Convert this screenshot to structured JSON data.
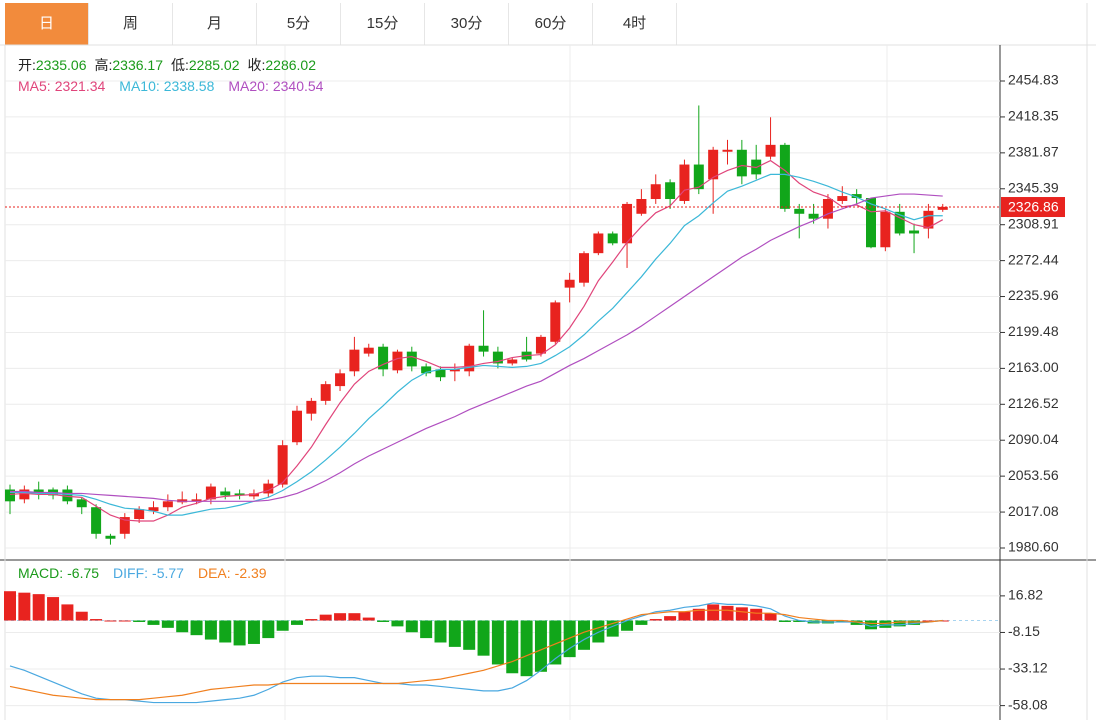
{
  "tabs": [
    "日",
    "周",
    "月",
    "5分",
    "15分",
    "30分",
    "60分",
    "4时"
  ],
  "active_tab": 0,
  "chart_data": [
    {
      "type": "candlestick",
      "readout": [
        {
          "name": "开:",
          "value": 2335.06
        },
        {
          "name": "高:",
          "value": 2336.17
        },
        {
          "name": "低:",
          "value": 2285.02
        },
        {
          "name": "收:",
          "value": 2286.02
        }
      ],
      "readout_color": "#1a9a1a",
      "up_color": "#e8231f",
      "down_color": "#11a61a",
      "open": [
        2040,
        2030,
        2040,
        2040,
        2040,
        2030,
        2022,
        1993,
        1995,
        2010,
        2018,
        2022,
        2027,
        2028,
        2030,
        2038,
        2036,
        2033,
        2036,
        2045,
        2088,
        2117,
        2130,
        2145,
        2160,
        2178,
        2185,
        2161,
        2180,
        2165,
        2162,
        2160,
        2160,
        2186,
        2180,
        2168,
        2180,
        2178,
        2190,
        2245,
        2250,
        2280,
        2300,
        2290,
        2320,
        2335,
        2352,
        2333,
        2370,
        2355,
        2383,
        2385,
        2375,
        2378,
        2390,
        2325,
        2320,
        2315,
        2333,
        2340,
        2336,
        2286,
        2322,
        2303,
        2305,
        2324
      ],
      "high": [
        2045,
        2044,
        2048,
        2042,
        2044,
        2032,
        2025,
        1995,
        2016,
        2023,
        2028,
        2035,
        2038,
        2036,
        2046,
        2042,
        2040,
        2040,
        2050,
        2090,
        2125,
        2133,
        2150,
        2162,
        2195,
        2188,
        2188,
        2182,
        2185,
        2168,
        2165,
        2168,
        2188,
        2222,
        2185,
        2174,
        2195,
        2197,
        2232,
        2260,
        2282,
        2302,
        2302,
        2332,
        2345,
        2360,
        2355,
        2375,
        2430,
        2388,
        2395,
        2395,
        2390,
        2418,
        2392,
        2330,
        2330,
        2340,
        2348,
        2345,
        2336,
        2325,
        2330,
        2310,
        2330,
        2330
      ],
      "low": [
        2015,
        2026,
        2030,
        2030,
        2025,
        2015,
        1990,
        1984,
        1990,
        2006,
        2015,
        2018,
        2025,
        2025,
        2025,
        2030,
        2030,
        2030,
        2032,
        2042,
        2085,
        2110,
        2126,
        2140,
        2155,
        2175,
        2155,
        2158,
        2160,
        2155,
        2150,
        2150,
        2155,
        2175,
        2163,
        2166,
        2170,
        2175,
        2188,
        2230,
        2246,
        2278,
        2288,
        2265,
        2318,
        2330,
        2325,
        2330,
        2340,
        2320,
        2370,
        2350,
        2355,
        2375,
        2322,
        2295,
        2310,
        2305,
        2330,
        2330,
        2285,
        2282,
        2298,
        2280,
        2295,
        2322
      ],
      "close": [
        2028,
        2040,
        2036,
        2034,
        2028,
        2022,
        1995,
        1990,
        2012,
        2020,
        2022,
        2028,
        2030,
        2030,
        2043,
        2034,
        2034,
        2036,
        2046,
        2085,
        2120,
        2130,
        2147,
        2158,
        2182,
        2184,
        2162,
        2180,
        2165,
        2158,
        2154,
        2162,
        2186,
        2180,
        2168,
        2172,
        2172,
        2195,
        2230,
        2253,
        2280,
        2300,
        2290,
        2330,
        2335,
        2350,
        2335,
        2370,
        2345,
        2385,
        2385,
        2358,
        2360,
        2390,
        2325,
        2320,
        2315,
        2335,
        2338,
        2336,
        2286,
        2322,
        2300,
        2300,
        2323,
        2327
      ],
      "series": [
        {
          "name": "MA5:",
          "readout": 2321.34,
          "color": "#e0457b",
          "values": [
            2035,
            2036,
            2035,
            2035,
            2033,
            2032,
            2023,
            2014,
            2009,
            2008,
            2008,
            2014,
            2022,
            2026,
            2031,
            2033,
            2034,
            2035,
            2039,
            2047,
            2064,
            2083,
            2106,
            2128,
            2147,
            2160,
            2167,
            2173,
            2175,
            2170,
            2164,
            2164,
            2165,
            2168,
            2170,
            2174,
            2176,
            2177,
            2187,
            2204,
            2226,
            2252,
            2271,
            2291,
            2307,
            2321,
            2328,
            2344,
            2347,
            2357,
            2364,
            2369,
            2367,
            2374,
            2364,
            2351,
            2342,
            2337,
            2327,
            2329,
            2322,
            2323,
            2316,
            2309,
            2306,
            2314
          ]
        },
        {
          "name": "MA10:",
          "readout": 2338.58,
          "color": "#3cb8d8",
          "values": [
            2037,
            2037,
            2036,
            2036,
            2035,
            2034,
            2030,
            2025,
            2021,
            2020,
            2018,
            2014,
            2014,
            2017,
            2020,
            2021,
            2024,
            2028,
            2032,
            2039,
            2048,
            2058,
            2070,
            2083,
            2097,
            2112,
            2125,
            2139,
            2151,
            2159,
            2162,
            2162,
            2164,
            2166,
            2165,
            2164,
            2165,
            2168,
            2176,
            2185,
            2197,
            2211,
            2224,
            2240,
            2256,
            2274,
            2290,
            2308,
            2318,
            2331,
            2343,
            2348,
            2354,
            2360,
            2360,
            2357,
            2353,
            2348,
            2342,
            2337,
            2330,
            2325,
            2319,
            2314,
            2318,
            2318
          ]
        },
        {
          "name": "MA20:",
          "readout": 2340.54,
          "color": "#b04fc0",
          "values": [
            2038,
            2038,
            2037,
            2037,
            2036,
            2036,
            2035,
            2034,
            2033,
            2032,
            2031,
            2029,
            2028,
            2028,
            2028,
            2028,
            2028,
            2028,
            2029,
            2032,
            2036,
            2042,
            2049,
            2057,
            2066,
            2074,
            2081,
            2088,
            2095,
            2102,
            2108,
            2114,
            2121,
            2127,
            2133,
            2139,
            2145,
            2150,
            2158,
            2166,
            2173,
            2181,
            2189,
            2197,
            2206,
            2216,
            2226,
            2236,
            2246,
            2256,
            2266,
            2276,
            2284,
            2293,
            2300,
            2307,
            2313,
            2320,
            2325,
            2330,
            2336,
            2338,
            2340,
            2340,
            2339,
            2338
          ]
        }
      ],
      "last_price": 2326.86,
      "ylim": [
        1968.4,
        2491.4
      ],
      "yticks": [
        2454.83,
        2418.35,
        2381.87,
        2345.39,
        2308.91,
        2272.44,
        2235.96,
        2199.48,
        {
          "value": 2163,
          "label": "2163.00"
        },
        2126.52,
        2090.04,
        2053.56,
        2017.08,
        {
          "value": 1980.6,
          "label": "1980.60"
        }
      ],
      "grid": true
    },
    {
      "type": "macd",
      "histogram": {
        "name": "MACD:",
        "readout": -6.75,
        "color": "#1a9a1a",
        "values": [
          20,
          19,
          18,
          16,
          11,
          6,
          1,
          0,
          0,
          -1,
          -3,
          -5,
          -8,
          -10,
          -13,
          -15,
          -17,
          -16,
          -12,
          -7,
          -3,
          1,
          4,
          5,
          5,
          2,
          -1,
          -4,
          -8,
          -12,
          -15,
          -18,
          -20,
          -24,
          -30,
          -36,
          -38,
          -35,
          -30,
          -25,
          -20,
          -15,
          -11,
          -7,
          -3,
          1,
          3,
          6,
          8,
          11,
          10,
          9,
          8,
          5,
          -1,
          -1,
          -2,
          -2,
          -1,
          -3,
          -6,
          -5,
          -4,
          -3,
          0,
          0
        ]
      },
      "up_color": "#e8231f",
      "down_color": "#11a61a",
      "series": [
        {
          "name": "DIFF:",
          "readout": -5.77,
          "color": "#4aa8e0",
          "values": [
            -31,
            -34,
            -38,
            -42,
            -46,
            -50,
            -53,
            -54,
            -54,
            -55,
            -56,
            -56,
            -56,
            -56,
            -55,
            -54,
            -53,
            -51,
            -47,
            -42,
            -39,
            -38,
            -38,
            -39,
            -39,
            -41,
            -43,
            -43,
            -44,
            -44,
            -45,
            -46,
            -47,
            -48,
            -48,
            -46,
            -41,
            -34,
            -26,
            -19,
            -13,
            -8,
            -4,
            0,
            3,
            6,
            7,
            9,
            10,
            12,
            11,
            11,
            10,
            8,
            3,
            0,
            -1,
            -1,
            -1,
            -1,
            -4,
            -3,
            -3,
            -2,
            -1,
            0
          ]
        },
        {
          "name": "DEA:",
          "readout": -2.39,
          "color": "#f07f1e",
          "values": [
            -45,
            -47,
            -49,
            -51,
            -52,
            -53,
            -54,
            -54,
            -54,
            -54,
            -53,
            -52,
            -51,
            -49,
            -47,
            -46,
            -45,
            -44,
            -44,
            -43,
            -43,
            -43,
            -43,
            -43,
            -43,
            -43,
            -43,
            -43,
            -42,
            -41,
            -40,
            -38,
            -36,
            -34,
            -31,
            -28,
            -24,
            -20,
            -16,
            -12,
            -8,
            -5,
            -2,
            1,
            4,
            5,
            6,
            6,
            7,
            7,
            7,
            6,
            5,
            5,
            4,
            2,
            1,
            0,
            0,
            -1,
            -2,
            -2,
            -1,
            -1,
            -1,
            0
          ]
        }
      ],
      "ylim": [
        -67.9,
        41.3
      ],
      "yticks": [
        16.82,
        -8.15,
        -33.12,
        -58.08
      ],
      "grid": true
    }
  ]
}
